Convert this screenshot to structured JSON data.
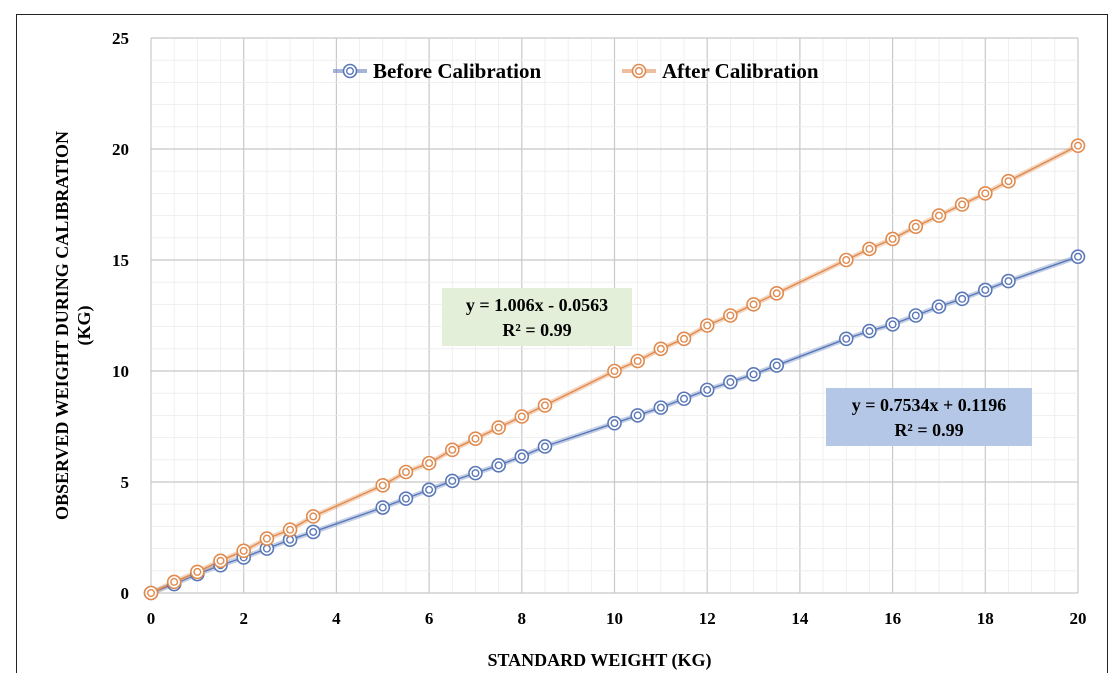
{
  "chart_data": {
    "type": "scatter",
    "xlabel": "STANDARD WEIGHT  (KG)",
    "ylabel_lines": [
      "OBSERVED WEIGHT  DURING CALIBRATION",
      "(KG)"
    ],
    "xlim": [
      0,
      20
    ],
    "ylim": [
      0,
      25
    ],
    "x_ticks": [
      0,
      2,
      4,
      6,
      8,
      10,
      12,
      14,
      16,
      18,
      20
    ],
    "y_ticks": [
      0,
      5,
      10,
      15,
      20,
      25
    ],
    "grid": true,
    "minor_grid": true,
    "legend_position": "top",
    "series": [
      {
        "name": "Before Calibration",
        "color": "#5a78b8",
        "marker": "double-circle",
        "x": [
          0,
          0.5,
          1,
          1.5,
          2,
          2.5,
          3,
          3.5,
          5,
          5.5,
          6,
          6.5,
          7,
          7.5,
          8,
          8.5,
          10,
          10.5,
          11,
          11.5,
          12,
          12.5,
          13,
          13.5,
          15,
          15.5,
          16,
          16.5,
          17,
          17.5,
          18,
          18.5,
          20
        ],
        "y": [
          0.0,
          0.4,
          0.85,
          1.25,
          1.6,
          2.0,
          2.4,
          2.75,
          3.85,
          4.25,
          4.65,
          5.05,
          5.4,
          5.75,
          6.15,
          6.6,
          7.65,
          8.0,
          8.35,
          8.75,
          9.15,
          9.5,
          9.85,
          10.25,
          11.45,
          11.8,
          12.1,
          12.5,
          12.9,
          13.25,
          13.65,
          14.05,
          15.15
        ]
      },
      {
        "name": "After Calibration",
        "color": "#e08a4e",
        "marker": "double-circle",
        "x": [
          0,
          0.5,
          1,
          1.5,
          2,
          2.5,
          3,
          3.5,
          5,
          5.5,
          6,
          6.5,
          7,
          7.5,
          8,
          8.5,
          10,
          10.5,
          11,
          11.5,
          12,
          12.5,
          13,
          13.5,
          15,
          15.5,
          16,
          16.5,
          17,
          17.5,
          18,
          18.5,
          20
        ],
        "y": [
          0.0,
          0.5,
          0.95,
          1.45,
          1.9,
          2.45,
          2.85,
          3.45,
          4.85,
          5.45,
          5.85,
          6.45,
          6.95,
          7.45,
          7.95,
          8.45,
          10.0,
          10.45,
          11.0,
          11.45,
          12.05,
          12.5,
          13.0,
          13.5,
          15.0,
          15.5,
          15.95,
          16.5,
          17.0,
          17.5,
          18.0,
          18.55,
          20.15
        ]
      }
    ],
    "annotations": [
      {
        "series": "After Calibration",
        "lines": [
          "y = 1.006x - 0.0563",
          "R² = 0.99"
        ],
        "bg_color": "#e3efd9"
      },
      {
        "series": "Before Calibration",
        "lines": [
          "y = 0.7534x + 0.1196",
          "R² = 0.99"
        ],
        "bg_color": "#b4c7e7"
      }
    ]
  }
}
